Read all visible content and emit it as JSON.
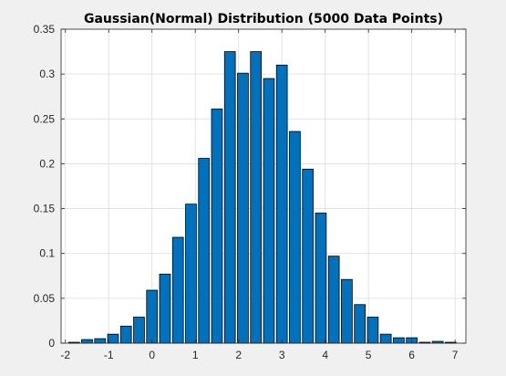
{
  "chart_data": {
    "type": "bar",
    "title": "Gaussian(Normal) Distribution (5000 Data Points)",
    "xlabel": "",
    "ylabel": "",
    "xlim": [
      -2.1,
      7.25
    ],
    "ylim": [
      0,
      0.35
    ],
    "xticks": [
      -2,
      -1,
      0,
      1,
      2,
      3,
      4,
      5,
      6,
      7
    ],
    "xtick_labels": [
      "-2",
      "-1",
      "0",
      "1",
      "2",
      "3",
      "4",
      "5",
      "6",
      "7"
    ],
    "yticks": [
      0,
      0.05,
      0.1,
      0.15,
      0.2,
      0.25,
      0.3,
      0.35
    ],
    "ytick_labels": [
      "0",
      "0.05",
      "0.1",
      "0.15",
      "0.2",
      "0.25",
      "0.3",
      "0.35"
    ],
    "grid": true,
    "bar_width": 0.25,
    "x": [
      -1.8,
      -1.5,
      -1.2,
      -0.9,
      -0.6,
      -0.3,
      0.0,
      0.3,
      0.6,
      0.9,
      1.2,
      1.5,
      1.8,
      2.1,
      2.4,
      2.7,
      3.0,
      3.3,
      3.6,
      3.9,
      4.2,
      4.5,
      4.8,
      5.1,
      5.4,
      5.7,
      6.0,
      6.3,
      6.6,
      6.9
    ],
    "values": [
      0.001,
      0.004,
      0.005,
      0.01,
      0.019,
      0.029,
      0.059,
      0.077,
      0.118,
      0.155,
      0.206,
      0.261,
      0.325,
      0.301,
      0.325,
      0.295,
      0.31,
      0.236,
      0.194,
      0.145,
      0.097,
      0.071,
      0.043,
      0.029,
      0.01,
      0.006,
      0.006,
      0.001,
      0.002,
      0.001
    ],
    "colors": {
      "bar_fill": "#0072bd",
      "bar_edge": "#000000",
      "axes_bg": "#ffffff",
      "figure_bg": "#f0f0f0",
      "grid": "#dcdcdc",
      "axis": "#262626"
    }
  }
}
